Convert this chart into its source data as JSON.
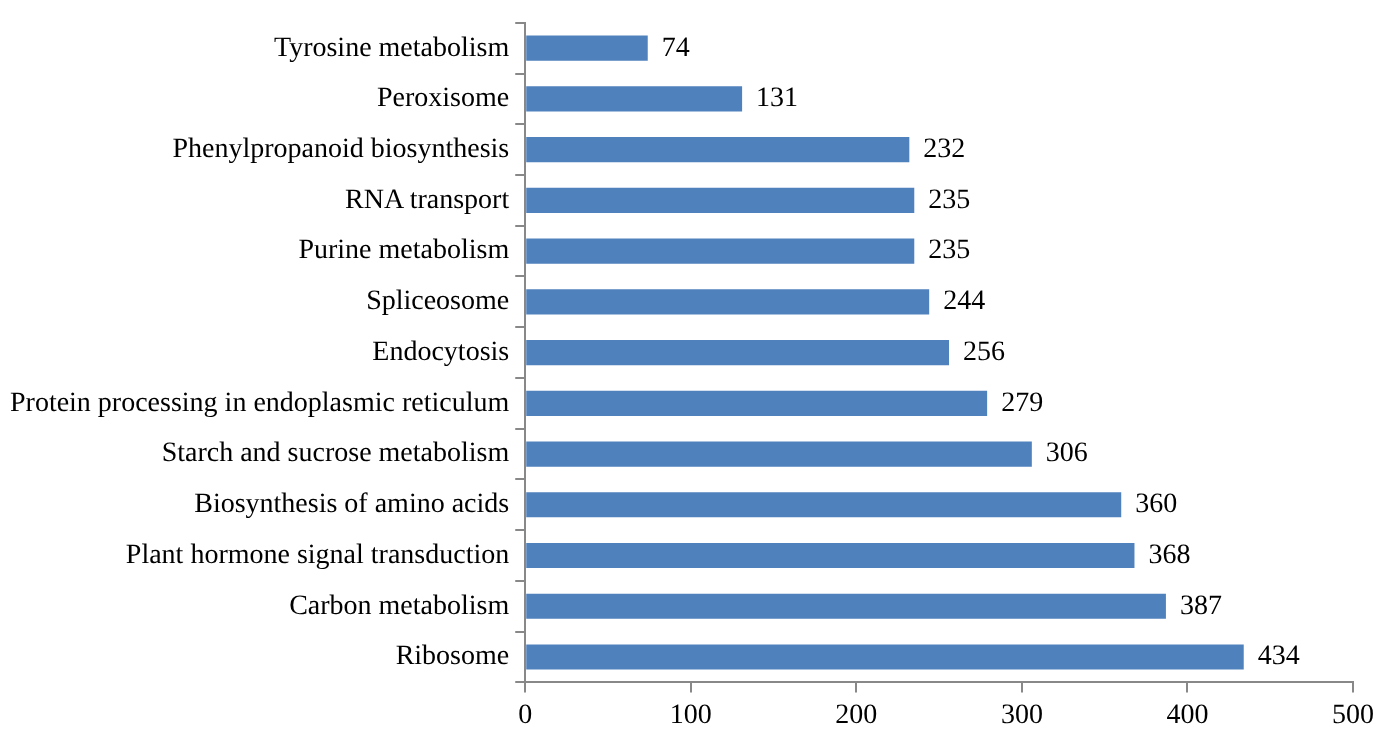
{
  "chart_data": {
    "type": "bar",
    "orientation": "horizontal",
    "categories": [
      "Tyrosine metabolism",
      "Peroxisome",
      "Phenylpropanoid biosynthesis",
      "RNA transport",
      "Purine metabolism",
      "Spliceosome",
      "Endocytosis",
      "Protein processing in endoplasmic reticulum",
      "Starch and sucrose metabolism",
      "Biosynthesis of amino acids",
      "Plant hormone signal transduction",
      "Carbon metabolism",
      "Ribosome"
    ],
    "values": [
      74,
      131,
      232,
      235,
      235,
      244,
      256,
      279,
      306,
      360,
      368,
      387,
      434
    ],
    "color": "#4f81bd",
    "xlim": [
      0,
      500
    ],
    "xticks": [
      0,
      100,
      200,
      300,
      400,
      500
    ],
    "grid": false,
    "legend": false,
    "data_labels": true
  }
}
